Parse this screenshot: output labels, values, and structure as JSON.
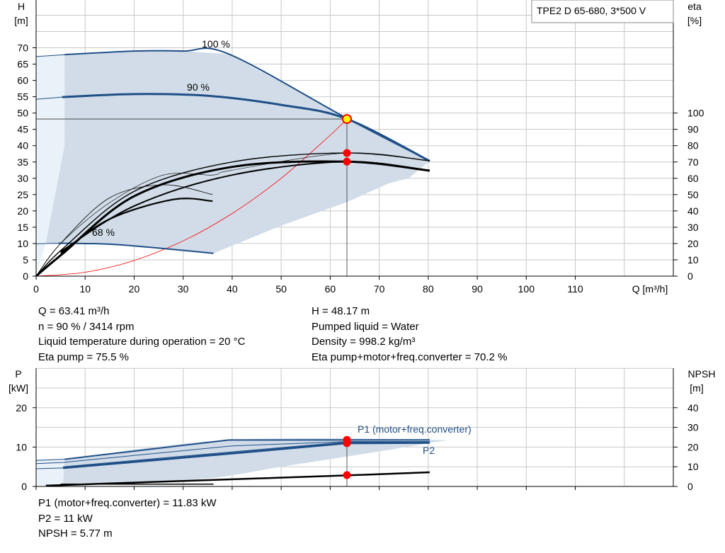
{
  "chart_data": [
    {
      "type": "line",
      "title": "TPE2 D 65-680, 3*500 V",
      "y_axis_label": [
        "H",
        "[m]"
      ],
      "y2_axis_label": [
        "eta",
        "[%]"
      ],
      "x_axis_label": "Q [m³/h]",
      "xlim": [
        0,
        130
      ],
      "ylim": [
        0,
        75
      ],
      "y2lim": [
        0,
        150
      ],
      "x_ticks": [
        "0",
        "10",
        "20",
        "30",
        "40",
        "50",
        "60",
        "70",
        "80",
        "90",
        "100",
        "110"
      ],
      "y_ticks": [
        "0",
        "5",
        "10",
        "15",
        "20",
        "25",
        "30",
        "35",
        "40",
        "45",
        "50",
        "55",
        "60",
        "65",
        "70"
      ],
      "y2_ticks": [
        "0",
        "10",
        "20",
        "30",
        "40",
        "50",
        "60",
        "70",
        "80",
        "90",
        "100"
      ],
      "grid": true,
      "series": [
        {
          "name": "100 %",
          "x": [
            0,
            5.8,
            20,
            30,
            39.3,
            63.4,
            80.3
          ],
          "y": [
            67.3,
            67.9,
            69.0,
            69.0,
            68.1,
            48.4,
            35.3
          ]
        },
        {
          "name": "90 %",
          "x": [
            0,
            5.3,
            20,
            35,
            50,
            63.4,
            80.3
          ],
          "y": [
            54.2,
            54.9,
            55.8,
            55.3,
            52.5,
            48.2,
            35.3
          ]
        },
        {
          "name": "68 %",
          "x": [
            0,
            4.5,
            15,
            25,
            36.2
          ],
          "y": [
            9.9,
            10.1,
            9.8,
            8.6,
            7.0
          ]
        }
      ],
      "efficiency_curves": [
        {
          "x": [
            5.5,
            20,
            40,
            63.4,
            80.3
          ],
          "eta": [
            14,
            49,
            67,
            70.2,
            64.7
          ]
        },
        {
          "x": [
            5.5,
            20,
            40,
            63.4,
            80.3
          ],
          "eta": [
            17,
            52,
            70,
            75.5,
            70.7
          ]
        }
      ],
      "system_curve": {
        "x": [
          0,
          10,
          20,
          30,
          40,
          50,
          60,
          63.4
        ],
        "y": [
          0,
          1.2,
          4.8,
          10.8,
          19.2,
          30,
          43.2,
          48.17
        ]
      },
      "duty_point": {
        "Q": 63.41,
        "H": 48.17,
        "eta_pump": 75.5,
        "eta_total": 70.2
      }
    },
    {
      "type": "line",
      "y_axis_label": [
        "P",
        "[kW]"
      ],
      "y2_axis_label": [
        "NPSH",
        "[m]"
      ],
      "ylim": [
        0,
        25
      ],
      "y2lim": [
        0,
        50
      ],
      "y_ticks": [
        "0",
        "10",
        "20"
      ],
      "y2_ticks": [
        "0",
        "10",
        "20",
        "30",
        "40"
      ],
      "series": [
        {
          "name": "P1 (motor+freq.converter)",
          "x": [
            5.8,
            39.3,
            63.4,
            80.3
          ],
          "y": [
            6.9,
            11.8,
            11.83,
            11.83
          ]
        },
        {
          "name": "P2",
          "x": [
            5.5,
            40,
            63.4,
            80.3
          ],
          "y": [
            4.7,
            8.4,
            11.0,
            11.1
          ]
        },
        {
          "x": [
            2,
            30,
            63.4,
            80.3
          ],
          "y": [
            0.2,
            1.4,
            2.8,
            3.6
          ]
        }
      ],
      "duty_point": {
        "P1": 11.83,
        "P2": 11,
        "NPSH": 5.77
      }
    }
  ],
  "info_top_left": [
    "Q = 63.41 m³/h",
    "n = 90 % / 3414 rpm",
    "Liquid temperature during operation = 20 °C",
    "Eta pump = 75.5 %"
  ],
  "info_top_right": [
    "H = 48.17 m",
    "Pumped liquid = Water",
    "Density = 998.2 kg/m³",
    "Eta pump+motor+freq.converter = 70.2 %"
  ],
  "info_bottom": [
    "P1 (motor+freq.converter) = 11.83 kW",
    "P2 = 11 kW",
    "NPSH = 5.77 m"
  ],
  "colors": {
    "curve_blue": "#1f4f87",
    "envelope": "#d1dce8",
    "envelope_light": "#eaf2f9",
    "grid": "#c8c8c8",
    "duty_red": "#ff0000",
    "duty_yellow": "#ffff00"
  }
}
